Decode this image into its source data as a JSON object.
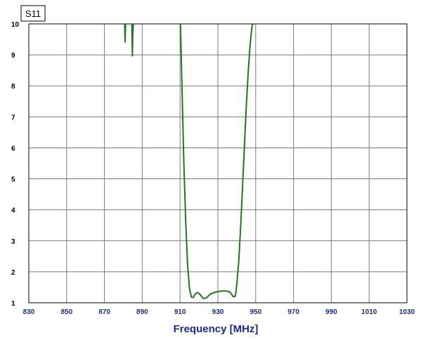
{
  "chart_data": {
    "type": "line",
    "title": "S11",
    "xlabel": "Frequency [MHz]",
    "ylabel": "",
    "xlim": [
      830,
      1030
    ],
    "ylim": [
      1,
      10
    ],
    "x_ticks": [
      "830",
      "850",
      "870",
      "890",
      "910",
      "930",
      "950",
      "970",
      "990",
      "1010",
      "1030"
    ],
    "y_ticks": [
      "1",
      "2",
      "3",
      "4",
      "5",
      "6",
      "7",
      "8",
      "9",
      "10"
    ],
    "grid": true,
    "series": [
      {
        "color": "#1e7a1e",
        "segments": [
          [
            [
              880.7,
              10
            ],
            [
              880.9,
              9.4
            ],
            [
              881.2,
              10
            ]
          ],
          [
            [
              884.5,
              10
            ],
            [
              884.8,
              8.95
            ],
            [
              885.0,
              9.7
            ],
            [
              885.3,
              10
            ]
          ]
        ],
        "x": [
          910.2,
          911.0,
          912.0,
          913.0,
          914.0,
          915.0,
          916.0,
          917.0,
          918.0,
          919.0,
          920.0,
          921.0,
          922.0,
          923.0,
          924.0,
          925.0,
          926.0,
          928.0,
          930.0,
          932.0,
          934.0,
          936.0,
          937.0,
          938.0,
          939.0,
          939.5,
          940.0,
          941.0,
          942.0,
          943.0,
          944.0,
          945.0,
          946.0,
          947.0,
          948.0,
          948.5
        ],
        "y": [
          10,
          8.0,
          5.5,
          3.6,
          2.2,
          1.45,
          1.18,
          1.17,
          1.28,
          1.33,
          1.3,
          1.24,
          1.15,
          1.14,
          1.16,
          1.22,
          1.28,
          1.33,
          1.36,
          1.38,
          1.38,
          1.36,
          1.3,
          1.2,
          1.2,
          1.3,
          1.6,
          2.3,
          3.4,
          4.7,
          6.0,
          7.3,
          8.4,
          9.3,
          9.9,
          10
        ]
      }
    ]
  }
}
